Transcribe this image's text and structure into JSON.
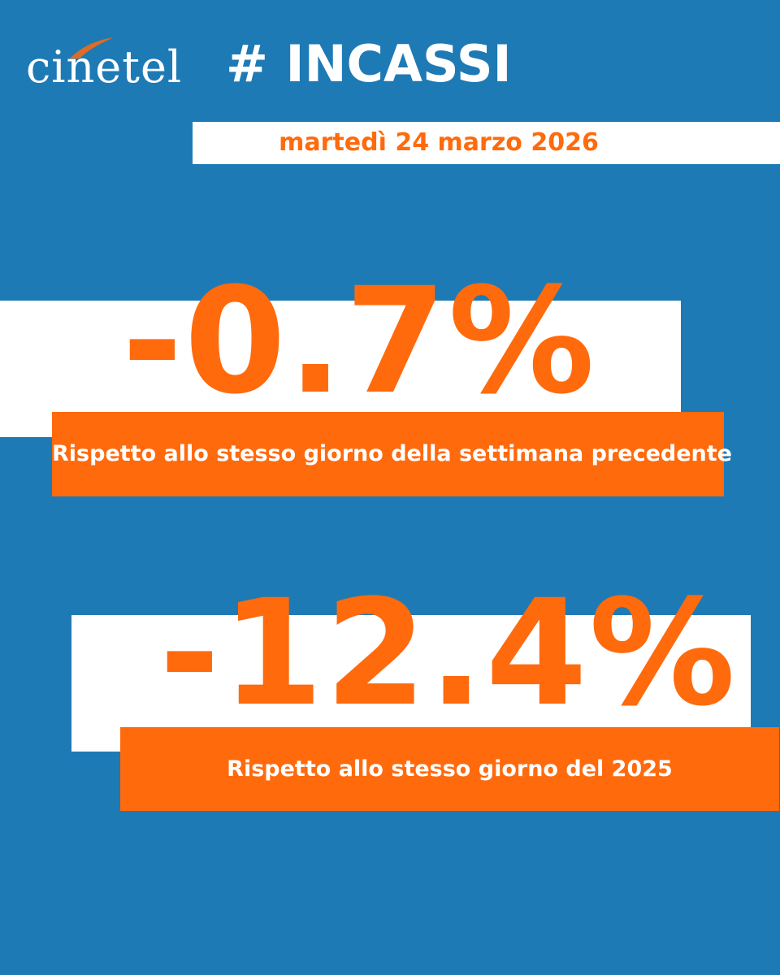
{
  "brand": {
    "logo_text": "cinetel",
    "headline": "# INCASSI"
  },
  "date": "martedì 24 marzo 2026",
  "metrics": [
    {
      "value": "-0.7%",
      "label": "Rispetto allo stesso giorno della settimana precedente"
    },
    {
      "value": "-12.4%",
      "label": "Rispetto allo stesso giorno del 2025"
    }
  ],
  "colors": {
    "background": "#1e7ab5",
    "accent": "#ff6a0d",
    "card": "#ffffff",
    "text_on_accent": "#ffffff"
  }
}
